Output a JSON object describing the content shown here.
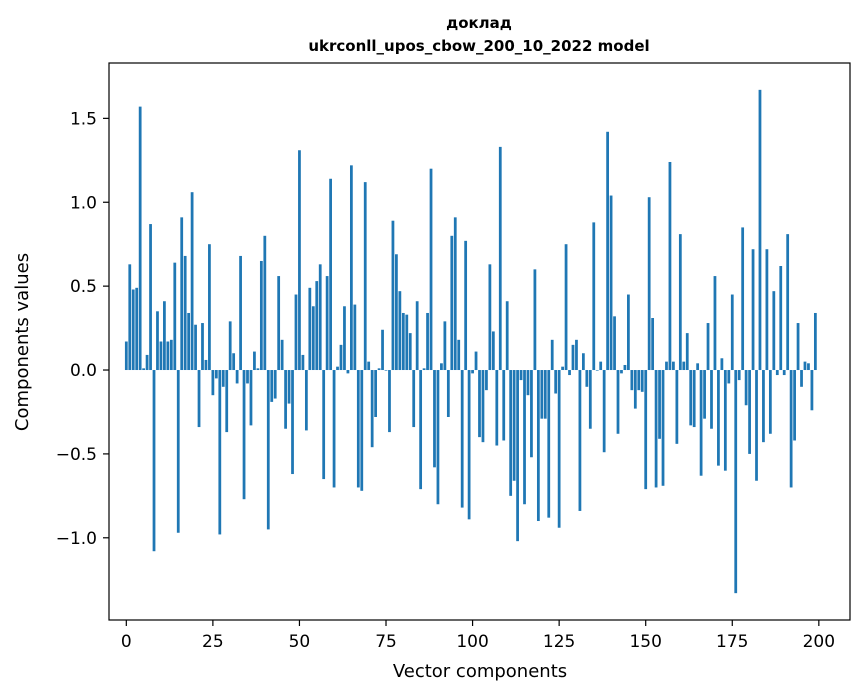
{
  "chart_data": {
    "type": "bar",
    "title_line1": "доклад",
    "title_line2": "ukrconll_upos_cbow_200_10_2022 model",
    "xlabel": "Vector components",
    "ylabel": "Components values",
    "xlim": [
      -5,
      209
    ],
    "ylim": [
      -1.49,
      1.83
    ],
    "x_ticks": [
      0,
      25,
      50,
      75,
      100,
      125,
      150,
      175,
      200
    ],
    "y_ticks": [
      -1.0,
      -0.5,
      0.0,
      0.5,
      1.0,
      1.5
    ],
    "x_tick_labels": [
      "0",
      "25",
      "50",
      "75",
      "100",
      "125",
      "150",
      "175",
      "200"
    ],
    "y_tick_labels": [
      "−1.0",
      "−0.5",
      "0.0",
      "0.5",
      "1.0",
      "1.5"
    ],
    "bar_color": "#1f77b4",
    "grid": false,
    "x": [
      0,
      1,
      2,
      3,
      4,
      5,
      6,
      7,
      8,
      9,
      10,
      11,
      12,
      13,
      14,
      15,
      16,
      17,
      18,
      19,
      20,
      21,
      22,
      23,
      24,
      25,
      26,
      27,
      28,
      29,
      30,
      31,
      32,
      33,
      34,
      35,
      36,
      37,
      38,
      39,
      40,
      41,
      42,
      43,
      44,
      45,
      46,
      47,
      48,
      49,
      50,
      51,
      52,
      53,
      54,
      55,
      56,
      57,
      58,
      59,
      60,
      61,
      62,
      63,
      64,
      65,
      66,
      67,
      68,
      69,
      70,
      71,
      72,
      73,
      74,
      75,
      76,
      77,
      78,
      79,
      80,
      81,
      82,
      83,
      84,
      85,
      86,
      87,
      88,
      89,
      90,
      91,
      92,
      93,
      94,
      95,
      96,
      97,
      98,
      99,
      100,
      101,
      102,
      103,
      104,
      105,
      106,
      107,
      108,
      109,
      110,
      111,
      112,
      113,
      114,
      115,
      116,
      117,
      118,
      119,
      120,
      121,
      122,
      123,
      124,
      125,
      126,
      127,
      128,
      129,
      130,
      131,
      132,
      133,
      134,
      135,
      136,
      137,
      138,
      139,
      140,
      141,
      142,
      143,
      144,
      145,
      146,
      147,
      148,
      149,
      150,
      151,
      152,
      153,
      154,
      155,
      156,
      157,
      158,
      159,
      160,
      161,
      162,
      163,
      164,
      165,
      166,
      167,
      168,
      169,
      170,
      171,
      172,
      173,
      174,
      175,
      176,
      177,
      178,
      179,
      180,
      181,
      182,
      183,
      184,
      185,
      186,
      187,
      188,
      189,
      190,
      191,
      192,
      193,
      194,
      195,
      196,
      197,
      198,
      199
    ],
    "values": [
      0.17,
      0.63,
      0.48,
      0.49,
      1.57,
      0.01,
      0.09,
      0.87,
      -1.08,
      0.35,
      0.17,
      0.41,
      0.17,
      0.18,
      0.64,
      -0.97,
      0.91,
      0.68,
      0.34,
      1.06,
      0.27,
      -0.34,
      0.28,
      0.06,
      0.75,
      -0.15,
      -0.05,
      -0.98,
      -0.1,
      -0.37,
      0.29,
      0.1,
      -0.08,
      0.68,
      -0.77,
      -0.08,
      -0.33,
      0.11,
      0.01,
      0.65,
      0.8,
      -0.95,
      -0.19,
      -0.17,
      0.56,
      0.18,
      -0.35,
      -0.2,
      -0.62,
      0.45,
      1.31,
      0.09,
      -0.36,
      0.49,
      0.38,
      0.53,
      0.63,
      -0.65,
      0.56,
      1.14,
      -0.7,
      0.02,
      0.15,
      0.38,
      -0.02,
      1.22,
      0.39,
      -0.7,
      -0.72,
      1.12,
      0.05,
      -0.46,
      -0.28,
      0.01,
      0.24,
      0.0,
      -0.37,
      0.89,
      0.69,
      0.47,
      0.34,
      0.33,
      0.22,
      -0.34,
      0.41,
      -0.71,
      0.01,
      0.34,
      1.2,
      -0.58,
      -0.8,
      0.04,
      0.29,
      -0.28,
      0.8,
      0.91,
      0.18,
      -0.82,
      0.77,
      -0.89,
      -0.02,
      0.11,
      -0.4,
      -0.43,
      -0.12,
      0.63,
      0.23,
      -0.45,
      1.33,
      -0.42,
      0.41,
      -0.75,
      -0.66,
      -1.02,
      -0.06,
      -0.8,
      -0.15,
      -0.52,
      0.6,
      -0.9,
      -0.29,
      -0.29,
      -0.88,
      0.18,
      -0.14,
      -0.94,
      0.02,
      0.75,
      -0.03,
      0.15,
      0.18,
      -0.84,
      0.1,
      -0.1,
      -0.35,
      0.88,
      0.0,
      0.05,
      -0.49,
      1.42,
      1.04,
      0.32,
      -0.38,
      -0.02,
      0.03,
      0.45,
      -0.12,
      -0.23,
      -0.12,
      -0.13,
      -0.71,
      1.03,
      0.31,
      -0.7,
      -0.41,
      -0.69,
      0.05,
      1.24,
      0.05,
      -0.44,
      0.81,
      0.05,
      0.22,
      -0.33,
      -0.34,
      0.04,
      -0.63,
      -0.29,
      0.28,
      -0.35,
      0.56,
      -0.57,
      0.07,
      -0.6,
      -0.08,
      0.45,
      -1.33,
      -0.06,
      0.85,
      -0.21,
      -0.5,
      0.72,
      -0.66,
      1.67,
      -0.43,
      0.72,
      -0.38,
      0.47,
      -0.03,
      0.62,
      -0.03,
      0.81,
      -0.7,
      -0.42,
      0.28,
      -0.1,
      0.05,
      0.04,
      -0.24,
      0.34
    ]
  }
}
